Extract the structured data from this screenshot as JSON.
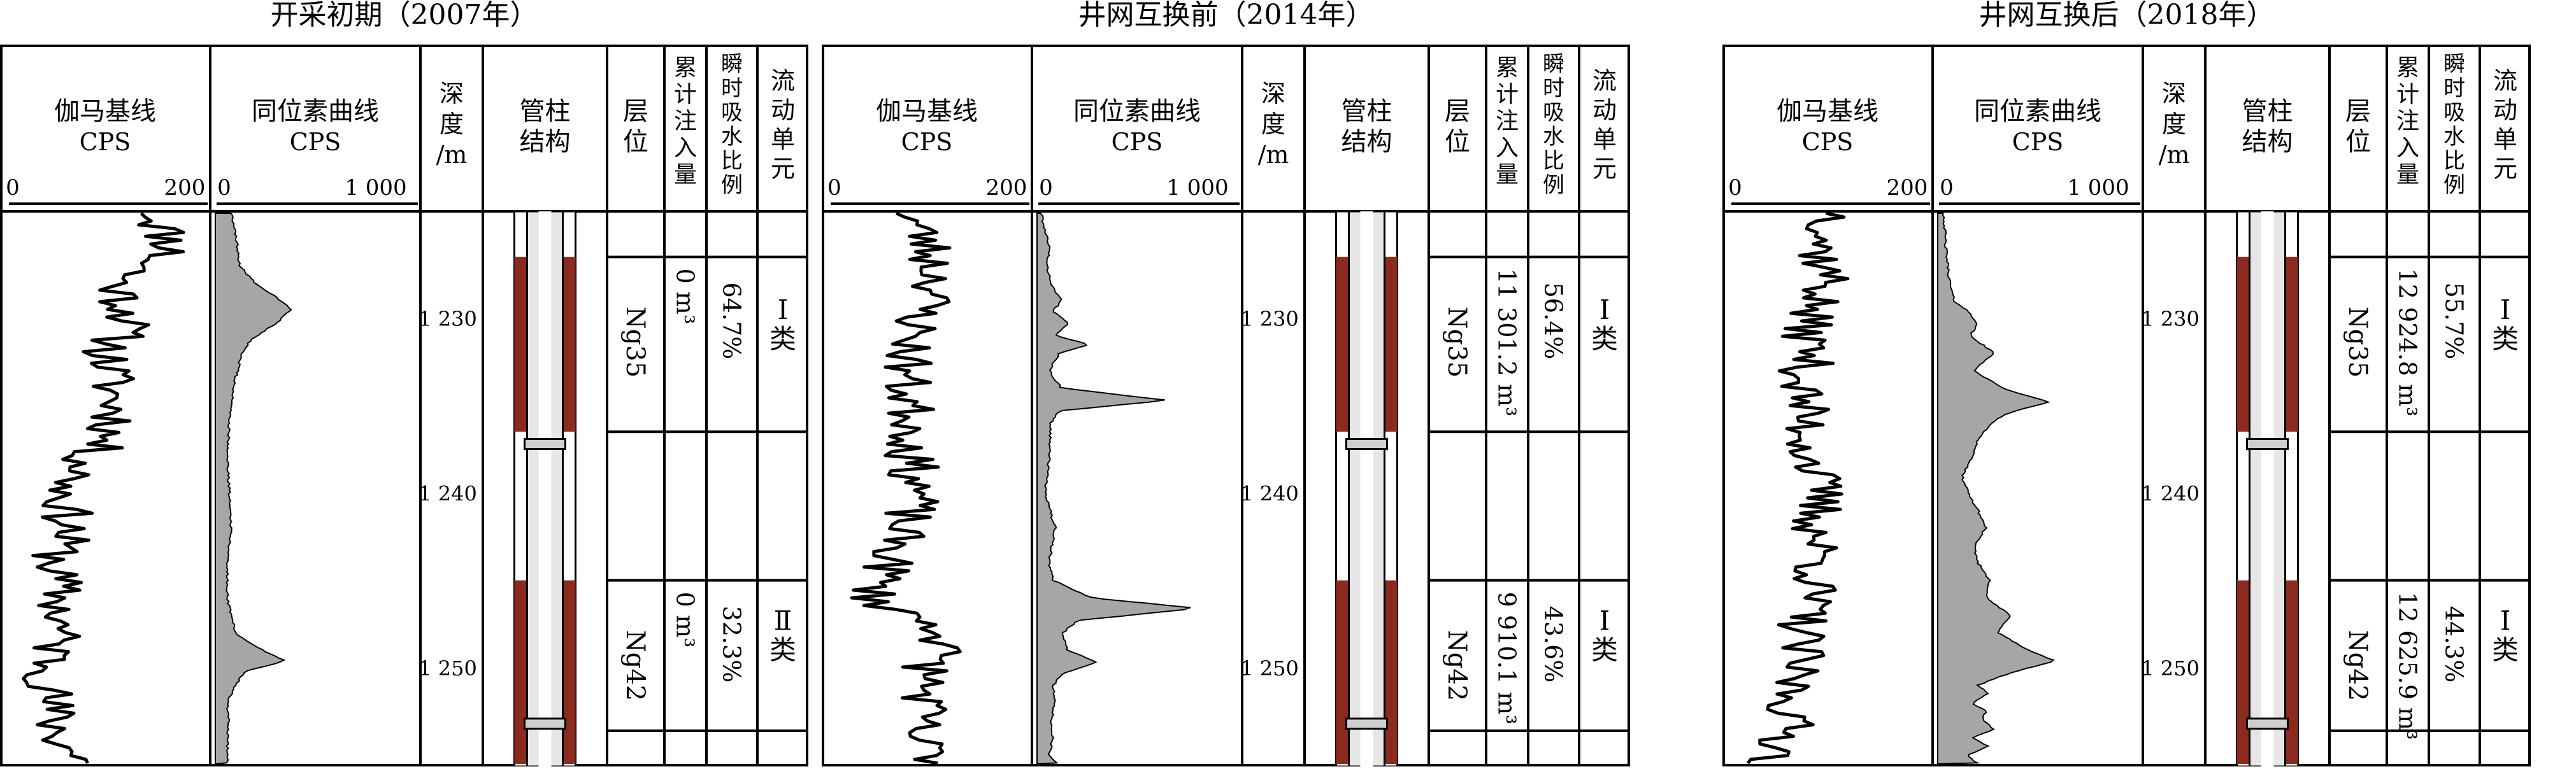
{
  "panels": [
    {
      "title": "开采初期（2007年）",
      "headers": {
        "gamma": [
          "伽马基线",
          "CPS"
        ],
        "gamma_range": [
          "0",
          "200"
        ],
        "iso": [
          "同位素曲线",
          "CPS"
        ],
        "iso_range": [
          "0",
          "1 000"
        ],
        "depth": [
          "深",
          "度",
          "/m"
        ],
        "tubing": [
          "管柱",
          "结构"
        ],
        "layer": [
          "层",
          "位"
        ],
        "cum": [
          "累",
          "计",
          "注",
          "入",
          "量"
        ],
        "ratio": [
          "瞬",
          "时",
          "吸",
          "水",
          "比",
          "例"
        ],
        "unit": [
          "流",
          "动",
          "单",
          "元"
        ]
      },
      "depth_ticks": [
        "1 230",
        "1 240",
        "1 250"
      ],
      "zones": [
        {
          "layer": "Ng35",
          "cum": "0 m³",
          "ratio": "64.7%",
          "unit": "Ⅰ类"
        },
        {
          "layer": "Ng42",
          "cum": "0 m³",
          "ratio": "32.3%",
          "unit": "Ⅱ类"
        }
      ]
    },
    {
      "title": "井网互换前（2014年）",
      "headers": {
        "gamma": [
          "伽马基线",
          "CPS"
        ],
        "gamma_range": [
          "0",
          "200"
        ],
        "iso": [
          "同位素曲线",
          "CPS"
        ],
        "iso_range": [
          "0",
          "1 000"
        ],
        "depth": [
          "深",
          "度",
          "/m"
        ],
        "tubing": [
          "管柱",
          "结构"
        ],
        "layer": [
          "层",
          "位"
        ],
        "cum": [
          "累",
          "计",
          "注",
          "入",
          "量"
        ],
        "ratio": [
          "瞬",
          "时",
          "吸",
          "水",
          "比",
          "例"
        ],
        "unit": [
          "流",
          "动",
          "单",
          "元"
        ]
      },
      "depth_ticks": [
        "1 230",
        "1 240",
        "1 250"
      ],
      "zones": [
        {
          "layer": "Ng35",
          "cum": "11 301.2 m³",
          "ratio": "56.4%",
          "unit": "Ⅰ类"
        },
        {
          "layer": "Ng42",
          "cum": "9 910.1 m³",
          "ratio": "43.6%",
          "unit": "Ⅰ类"
        }
      ]
    },
    {
      "title": "井网互换后（2018年）",
      "headers": {
        "gamma": [
          "伽马基线",
          "CPS"
        ],
        "gamma_range": [
          "0",
          "200"
        ],
        "iso": [
          "同位素曲线",
          "CPS"
        ],
        "iso_range": [
          "0",
          "1 000"
        ],
        "depth": [
          "深",
          "度",
          "/m"
        ],
        "tubing": [
          "管柱",
          "结构"
        ],
        "layer": [
          "层",
          "位"
        ],
        "cum": [
          "累",
          "计",
          "注",
          "入",
          "量"
        ],
        "ratio": [
          "瞬",
          "时",
          "吸",
          "水",
          "比",
          "例"
        ],
        "unit": [
          "流",
          "动",
          "单",
          "元"
        ]
      },
      "depth_ticks": [
        "1 230",
        "1 240",
        "1 250"
      ],
      "zones": [
        {
          "layer": "Ng35",
          "cum": "12 924.8 m³",
          "ratio": "55.7%",
          "unit": "Ⅰ类"
        },
        {
          "layer": "Ng42",
          "cum": "12 625.9 m³",
          "ratio": "44.3%",
          "unit": "Ⅰ类"
        }
      ]
    }
  ],
  "chart_data": [
    {
      "type": "line",
      "depth_range": [
        1224,
        1255.5
      ],
      "perforations": [
        [
          1226.5,
          1236.5
        ],
        [
          1245,
          1255.5
        ]
      ],
      "gamma_xlim": [
        0,
        200
      ],
      "iso_xlim": [
        0,
        1000
      ],
      "gamma_seed": 11,
      "gamma_series": {
        "depth": [
          1224,
          1226,
          1228,
          1230,
          1232,
          1234,
          1236,
          1238,
          1240,
          1242,
          1244,
          1246,
          1248,
          1250,
          1252,
          1254,
          1255.5
        ],
        "cps": [
          150,
          170,
          110,
          125,
          100,
          105,
          110,
          80,
          55,
          60,
          45,
          50,
          50,
          40,
          40,
          50,
          75
        ]
      },
      "iso_series": {
        "depth": [
          1224,
          1225,
          1226,
          1227,
          1228,
          1228.8,
          1229.5,
          1230.3,
          1231.2,
          1232,
          1234,
          1236,
          1238,
          1240,
          1242,
          1244,
          1246,
          1248,
          1248.8,
          1249.6,
          1250.2,
          1251,
          1252,
          1253,
          1254,
          1255,
          1255.5
        ],
        "cps": [
          80,
          100,
          110,
          120,
          200,
          300,
          380,
          300,
          180,
          130,
          90,
          70,
          60,
          70,
          80,
          60,
          60,
          100,
          200,
          350,
          150,
          100,
          60,
          70,
          60,
          60,
          60
        ]
      }
    },
    {
      "type": "line",
      "depth_range": [
        1224,
        1255.5
      ],
      "perforations": [
        [
          1226.5,
          1236.5
        ],
        [
          1245,
          1255.5
        ]
      ],
      "gamma_xlim": [
        0,
        200
      ],
      "iso_xlim": [
        0,
        1000
      ],
      "gamma_seed": 23,
      "gamma_series": {
        "depth": [
          1224,
          1226,
          1228,
          1230,
          1232,
          1234,
          1236,
          1238,
          1240,
          1242,
          1244,
          1246,
          1248,
          1250,
          1252,
          1254,
          1255.5
        ],
        "cps": [
          80,
          100,
          110,
          90,
          80,
          75,
          85,
          80,
          90,
          70,
          60,
          40,
          120,
          100,
          95,
          85,
          115
        ]
      },
      "iso_series": {
        "depth": [
          1224,
          1225,
          1226,
          1227,
          1228,
          1229,
          1229.6,
          1230.3,
          1231,
          1231.5,
          1232,
          1233,
          1234,
          1234.7,
          1235.3,
          1236,
          1238,
          1240,
          1242,
          1244,
          1245,
          1246,
          1246.6,
          1247.3,
          1248,
          1249,
          1249.7,
          1250.3,
          1251,
          1252,
          1253,
          1254,
          1255,
          1255.5
        ],
        "cps": [
          20,
          40,
          60,
          50,
          70,
          120,
          80,
          160,
          90,
          260,
          110,
          60,
          120,
          650,
          110,
          70,
          60,
          40,
          90,
          60,
          80,
          270,
          800,
          200,
          130,
          150,
          300,
          130,
          80,
          90,
          70,
          80,
          60,
          100
        ]
      }
    },
    {
      "type": "line",
      "depth_range": [
        1224,
        1255.5
      ],
      "perforations": [
        [
          1226.5,
          1236.5
        ],
        [
          1245,
          1255.5
        ]
      ],
      "gamma_xlim": [
        0,
        200
      ],
      "iso_xlim": [
        0,
        1000
      ],
      "gamma_seed": 37,
      "gamma_series": {
        "depth": [
          1224,
          1226,
          1228,
          1230,
          1232,
          1234,
          1236,
          1238,
          1240,
          1242,
          1244,
          1246,
          1248,
          1250,
          1252,
          1254,
          1255.5
        ],
        "cps": [
          110,
          90,
          100,
          75,
          80,
          70,
          75,
          80,
          90,
          85,
          90,
          80,
          70,
          65,
          60,
          55,
          40
        ]
      },
      "iso_series": {
        "depth": [
          1224,
          1226,
          1228,
          1229,
          1229.5,
          1230.3,
          1231,
          1232,
          1233,
          1234,
          1234.8,
          1235.5,
          1236.2,
          1237,
          1238,
          1239,
          1240,
          1241,
          1242,
          1243,
          1244,
          1245,
          1246,
          1247,
          1248,
          1249,
          1249.6,
          1250.3,
          1251,
          1251.5,
          1252,
          1252.5,
          1253,
          1253.5,
          1254,
          1254.5,
          1255,
          1255.5
        ],
        "cps": [
          30,
          40,
          60,
          80,
          140,
          200,
          160,
          280,
          180,
          320,
          550,
          330,
          250,
          200,
          170,
          120,
          150,
          200,
          240,
          180,
          200,
          260,
          240,
          360,
          300,
          450,
          580,
          360,
          200,
          250,
          170,
          240,
          220,
          280,
          170,
          250,
          150,
          200
        ]
      }
    }
  ]
}
